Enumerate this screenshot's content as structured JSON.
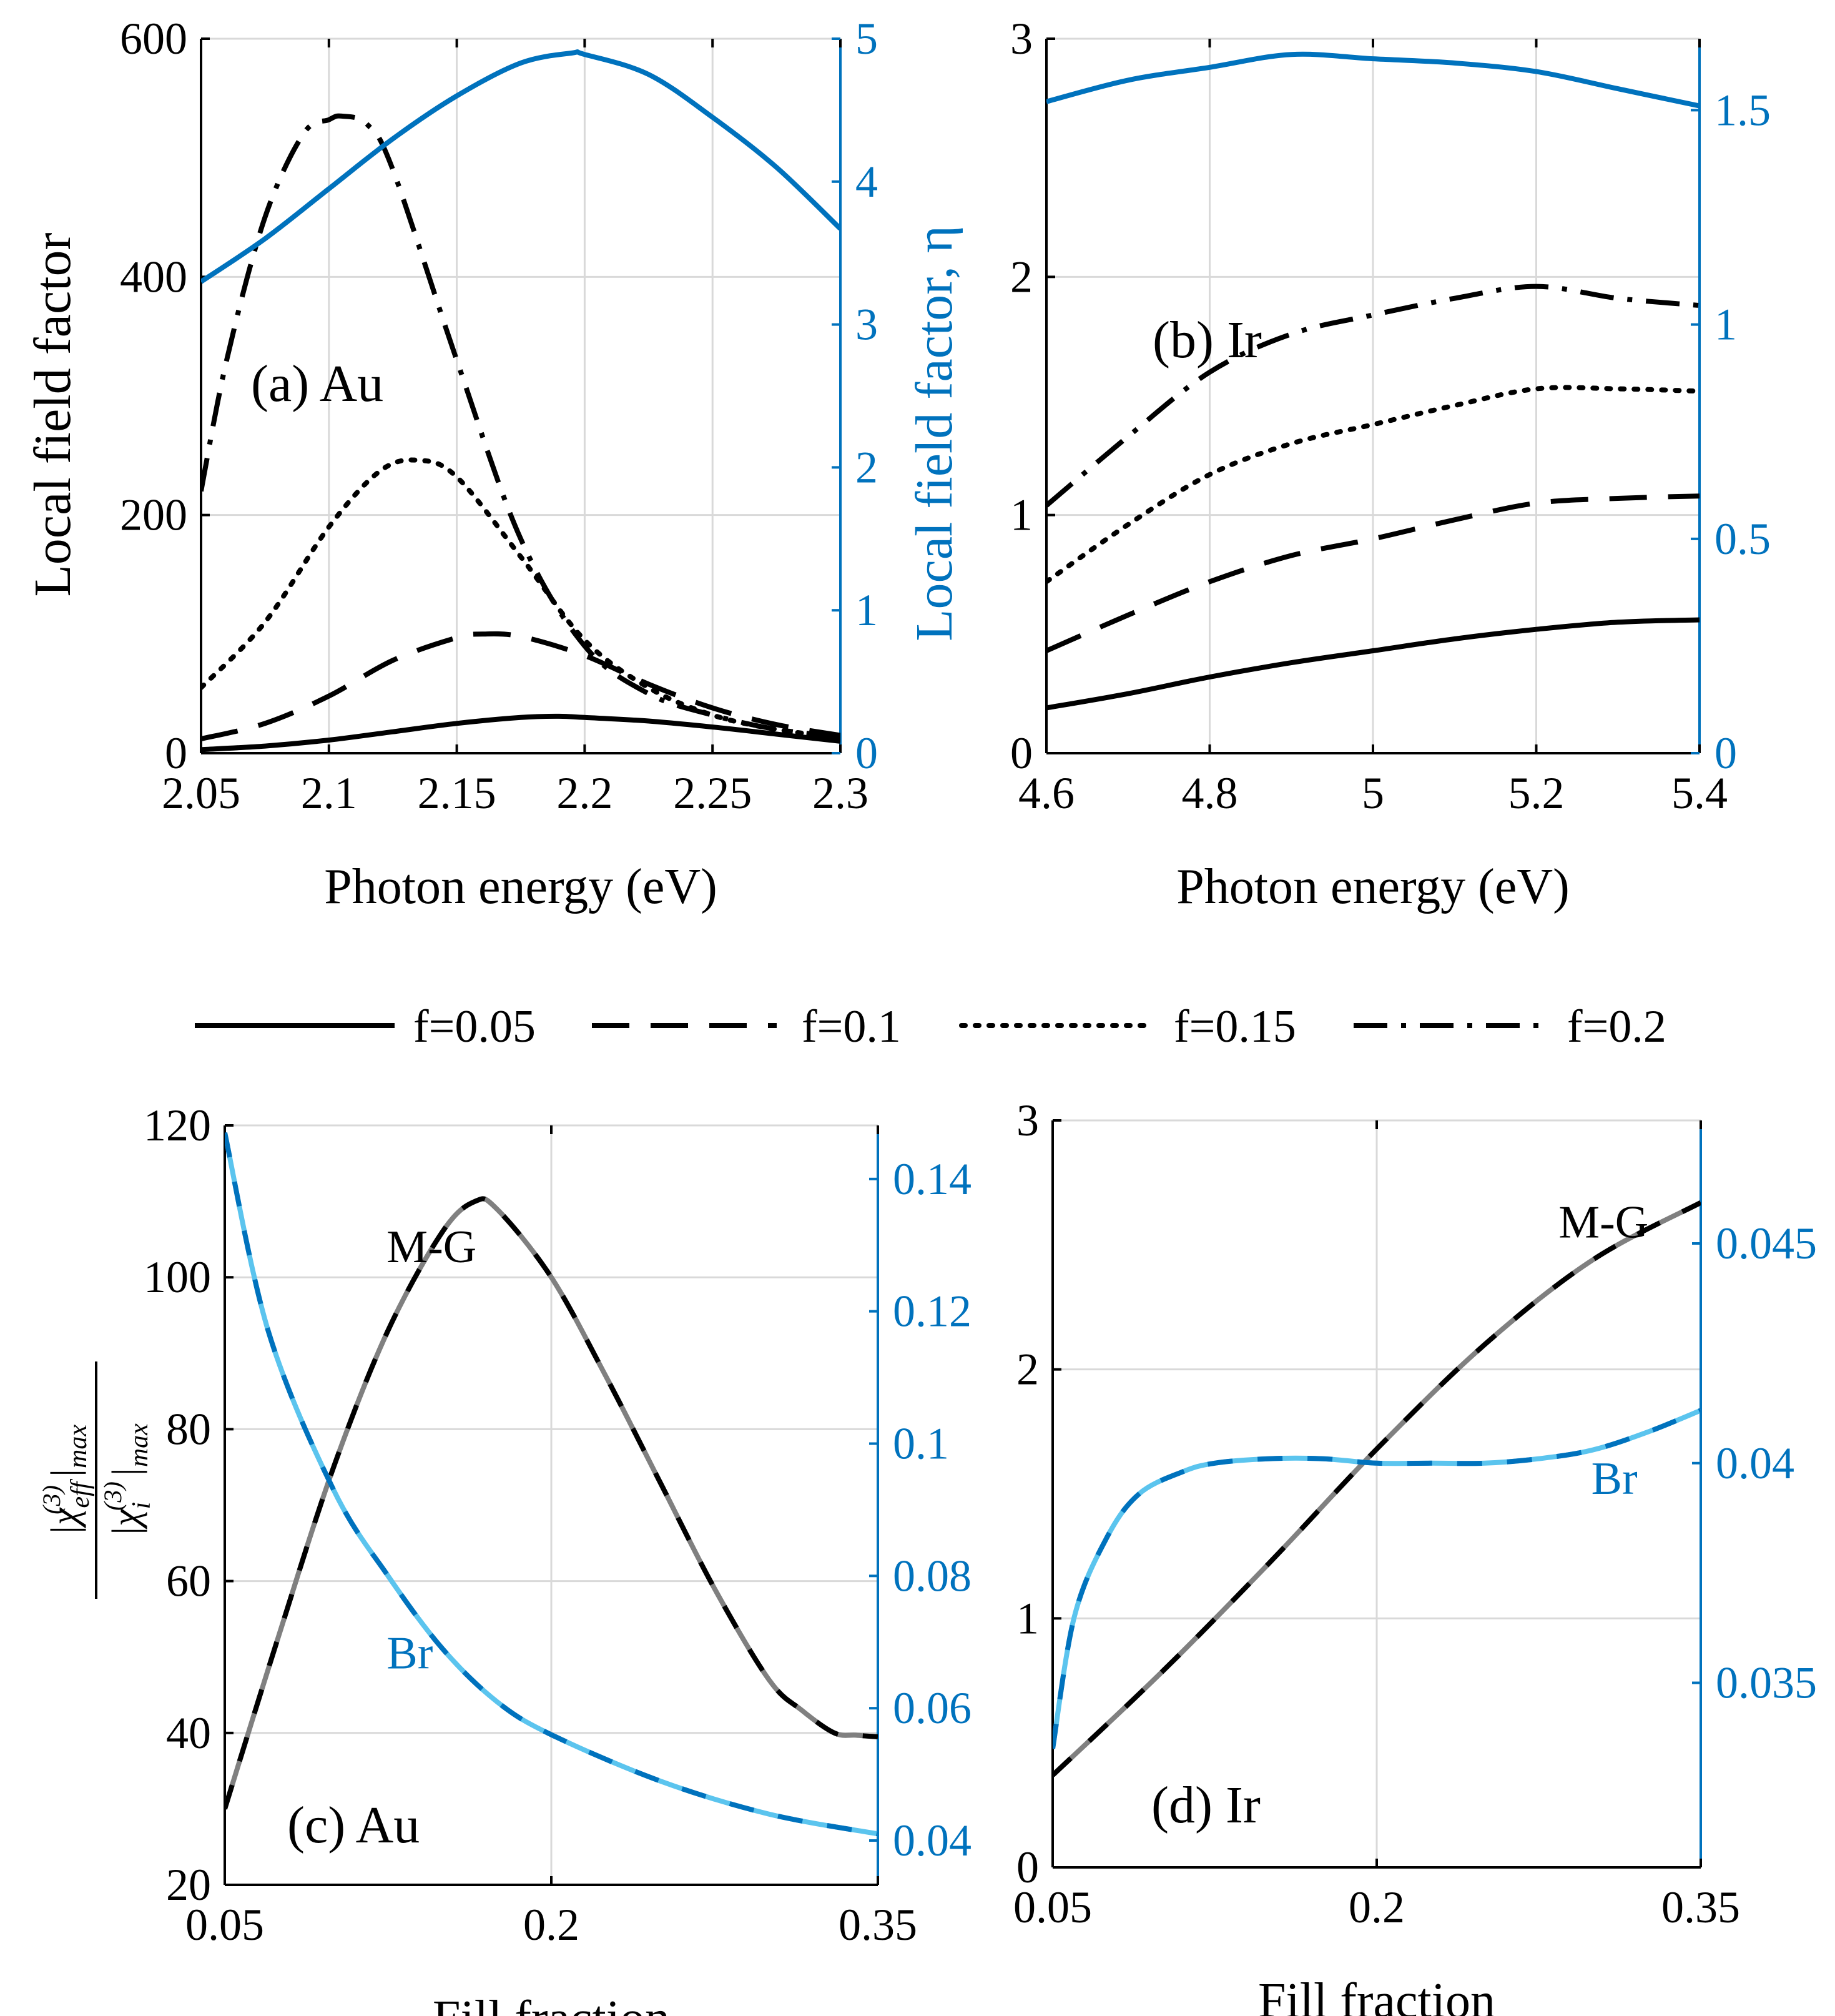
{
  "colors": {
    "black": "#000000",
    "blue": "#0072BD",
    "light_blue": "#5BC4EE",
    "gray": "#808080",
    "grid": "#D9D9D9"
  },
  "legend": {
    "placement": "top-center between panels",
    "entries": [
      {
        "label": "f=0.05",
        "dash": "solid"
      },
      {
        "label": "f=0.1",
        "dash": "dashed"
      },
      {
        "label": "f=0.15",
        "dash": "dotted"
      },
      {
        "label": "f=0.2",
        "dash": "dashdot"
      }
    ]
  },
  "chart_data": [
    {
      "id": "a",
      "type": "line",
      "panel_label": "(a) Au",
      "xlabel": "Photon energy (eV)",
      "ylabel": "Local field factor",
      "ylabel_right": "Local field factor, η",
      "xlim": [
        2.05,
        2.3
      ],
      "ylim": [
        0,
        600
      ],
      "ylim_right": [
        0,
        5
      ],
      "xticks": [
        "2.05",
        "2.1",
        "2.15",
        "2.2",
        "2.25",
        "2.3"
      ],
      "xtick_values": [
        2.05,
        2.1,
        2.15,
        2.2,
        2.25,
        2.3
      ],
      "yticks": [
        "0",
        "200",
        "400",
        "600"
      ],
      "ytick_values": [
        0,
        200,
        400,
        600
      ],
      "yticks_right": [
        "0",
        "1",
        "2",
        "3",
        "4",
        "5"
      ],
      "ytick_values_right": [
        0,
        1,
        2,
        3,
        4,
        5
      ],
      "grid": true,
      "series": [
        {
          "name": "f=0.05",
          "axis": "left",
          "style": "solid",
          "color": "#000000",
          "x": [
            2.05,
            2.075,
            2.1,
            2.125,
            2.15,
            2.175,
            2.19,
            2.2,
            2.225,
            2.25,
            2.275,
            2.3
          ],
          "y": [
            3,
            6,
            11,
            18,
            25,
            30,
            31,
            30,
            27,
            22,
            16,
            10
          ]
        },
        {
          "name": "f=0.1",
          "axis": "left",
          "style": "dashed",
          "color": "#000000",
          "x": [
            2.05,
            2.075,
            2.1,
            2.125,
            2.15,
            2.16,
            2.175,
            2.2,
            2.225,
            2.25,
            2.275,
            2.3
          ],
          "y": [
            12,
            25,
            48,
            78,
            97,
            100,
            98,
            82,
            58,
            38,
            24,
            15
          ]
        },
        {
          "name": "f=0.15",
          "axis": "left",
          "style": "dotted",
          "color": "#000000",
          "x": [
            2.05,
            2.075,
            2.1,
            2.12,
            2.135,
            2.15,
            2.175,
            2.2,
            2.225,
            2.25,
            2.275,
            2.3
          ],
          "y": [
            55,
            110,
            190,
            237,
            246,
            232,
            165,
            95,
            55,
            32,
            20,
            13
          ]
        },
        {
          "name": "f=0.2",
          "axis": "left",
          "style": "dashdot",
          "color": "#000000",
          "x": [
            2.05,
            2.06,
            2.075,
            2.09,
            2.1,
            2.105,
            2.115,
            2.125,
            2.15,
            2.175,
            2.2,
            2.225,
            2.25,
            2.275,
            2.3
          ],
          "y": [
            220,
            330,
            450,
            520,
            532,
            535,
            528,
            490,
            330,
            180,
            90,
            50,
            32,
            20,
            14
          ]
        },
        {
          "name": "η",
          "axis": "right",
          "style": "solid",
          "color": "#0072BD",
          "x": [
            2.05,
            2.075,
            2.1,
            2.125,
            2.15,
            2.175,
            2.195,
            2.2,
            2.225,
            2.25,
            2.275,
            2.3
          ],
          "y": [
            3.3,
            3.6,
            3.95,
            4.3,
            4.6,
            4.83,
            4.9,
            4.89,
            4.75,
            4.45,
            4.1,
            3.67
          ]
        }
      ]
    },
    {
      "id": "b",
      "type": "line",
      "panel_label": "(b) Ir",
      "xlabel": "Photon energy (eV)",
      "ylabel": "",
      "xlim": [
        4.6,
        5.4
      ],
      "ylim": [
        0,
        3
      ],
      "ylim_right": [
        0,
        1.6667
      ],
      "xticks": [
        "4.6",
        "4.8",
        "5",
        "5.2",
        "5.4"
      ],
      "xtick_values": [
        4.6,
        4.8,
        5.0,
        5.2,
        5.4
      ],
      "yticks": [
        "0",
        "1",
        "2",
        "3"
      ],
      "ytick_values": [
        0,
        1,
        2,
        3
      ],
      "yticks_right": [
        "0",
        "0.5",
        "1",
        "1.5"
      ],
      "ytick_values_right": [
        0,
        0.5,
        1,
        1.5
      ],
      "grid": true,
      "series": [
        {
          "name": "f=0.05",
          "axis": "left",
          "style": "solid",
          "color": "#000000",
          "x": [
            4.6,
            4.7,
            4.8,
            4.9,
            5.0,
            5.1,
            5.2,
            5.3,
            5.4
          ],
          "y": [
            0.19,
            0.25,
            0.32,
            0.38,
            0.43,
            0.48,
            0.52,
            0.55,
            0.56
          ]
        },
        {
          "name": "f=0.1",
          "axis": "left",
          "style": "dashed",
          "color": "#000000",
          "x": [
            4.6,
            4.7,
            4.8,
            4.9,
            5.0,
            5.1,
            5.2,
            5.3,
            5.4
          ],
          "y": [
            0.43,
            0.58,
            0.72,
            0.83,
            0.9,
            0.98,
            1.05,
            1.07,
            1.08
          ]
        },
        {
          "name": "f=0.15",
          "axis": "left",
          "style": "dotted",
          "color": "#000000",
          "x": [
            4.6,
            4.7,
            4.8,
            4.9,
            5.0,
            5.1,
            5.2,
            5.3,
            5.4
          ],
          "y": [
            0.72,
            0.96,
            1.17,
            1.3,
            1.38,
            1.46,
            1.53,
            1.53,
            1.52
          ]
        },
        {
          "name": "f=0.2",
          "axis": "left",
          "style": "dashdot",
          "color": "#000000",
          "x": [
            4.6,
            4.7,
            4.8,
            4.9,
            5.0,
            5.1,
            5.2,
            5.3,
            5.4
          ],
          "y": [
            1.04,
            1.33,
            1.6,
            1.76,
            1.84,
            1.91,
            1.96,
            1.91,
            1.88
          ]
        },
        {
          "name": "η",
          "axis": "right",
          "style": "solid",
          "color": "#0072BD",
          "x": [
            4.6,
            4.7,
            4.8,
            4.9,
            5.0,
            5.1,
            5.2,
            5.3,
            5.4
          ],
          "y": [
            1.52,
            1.57,
            1.6,
            1.63,
            1.62,
            1.61,
            1.59,
            1.55,
            1.51
          ]
        }
      ]
    },
    {
      "id": "c",
      "type": "line",
      "panel_label": "(c) Au",
      "xlabel": "Fill fraction",
      "ylabel": "|χ_eff^(3)|_max / |χ_i^(3)|_max",
      "ylabel_num": "|χ",
      "ylabel_den": "|χ",
      "xlim": [
        0.05,
        0.35
      ],
      "ylim": [
        20,
        120
      ],
      "ylim_right": [
        0.0333,
        0.1481
      ],
      "xticks": [
        "0.05",
        "0.2",
        "0.35"
      ],
      "xtick_values": [
        0.05,
        0.2,
        0.35
      ],
      "yticks": [
        "20",
        "40",
        "60",
        "80",
        "100",
        "120"
      ],
      "ytick_values": [
        20,
        40,
        60,
        80,
        100,
        120
      ],
      "yticks_right": [
        "0.04",
        "0.06",
        "0.08",
        "0.1",
        "0.12",
        "0.14"
      ],
      "ytick_values_right": [
        0.04,
        0.06,
        0.08,
        0.1,
        0.12,
        0.14
      ],
      "grid": true,
      "annotations": [
        {
          "text": "M-G",
          "x": 0.145,
          "y": 102,
          "color": "#000000"
        },
        {
          "text": "Br",
          "x": 0.135,
          "y": 0.066,
          "axis": "right",
          "color": "#0072BD"
        }
      ],
      "series": [
        {
          "name": "M-G",
          "axis": "left",
          "style": "gray-black-dashed",
          "color": "#808080",
          "x": [
            0.05,
            0.075,
            0.1,
            0.125,
            0.15,
            0.165,
            0.175,
            0.2,
            0.225,
            0.25,
            0.275,
            0.3,
            0.315,
            0.33,
            0.34,
            0.35
          ],
          "y": [
            30,
            53,
            75,
            93,
            106,
            110,
            109,
            100,
            87,
            73,
            59,
            47,
            43,
            40,
            39.7,
            39.5
          ]
        },
        {
          "name": "Br",
          "axis": "right",
          "style": "lightblue-blue-dashed",
          "color": "#5BC4EE",
          "x": [
            0.05,
            0.07,
            0.1,
            0.125,
            0.15,
            0.175,
            0.2,
            0.25,
            0.3,
            0.35
          ],
          "y": [
            0.147,
            0.117,
            0.093,
            0.08,
            0.069,
            0.061,
            0.056,
            0.049,
            0.044,
            0.041
          ]
        }
      ]
    },
    {
      "id": "d",
      "type": "line",
      "panel_label": "(d) Ir",
      "xlabel": "Fill fraction",
      "ylabel": "",
      "xlim": [
        0.05,
        0.35
      ],
      "ylim": [
        0,
        3
      ],
      "ylim_right": [
        0.0308,
        0.0478
      ],
      "xticks": [
        "0.05",
        "0.2",
        "0.35"
      ],
      "xtick_values": [
        0.05,
        0.2,
        0.35
      ],
      "yticks": [
        "0",
        "1",
        "2",
        "3"
      ],
      "ytick_values": [
        0,
        1,
        2,
        3
      ],
      "yticks_right": [
        "0.035",
        "0.04",
        "0.045"
      ],
      "ytick_values_right": [
        0.035,
        0.04,
        0.045
      ],
      "grid": true,
      "annotations": [
        {
          "text": "M-G",
          "x": 0.305,
          "y": 2.53,
          "color": "#000000"
        },
        {
          "text": "Br",
          "x": 0.31,
          "y": 0.0393,
          "axis": "right",
          "color": "#0072BD"
        }
      ],
      "series": [
        {
          "name": "M-G",
          "axis": "left",
          "style": "gray-black-dashed",
          "color": "#808080",
          "x": [
            0.05,
            0.1,
            0.15,
            0.2,
            0.25,
            0.3,
            0.35
          ],
          "y": [
            0.37,
            0.78,
            1.22,
            1.68,
            2.1,
            2.44,
            2.67
          ]
        },
        {
          "name": "Br",
          "axis": "right",
          "style": "lightblue-blue-dashed",
          "color": "#5BC4EE",
          "x": [
            0.05,
            0.06,
            0.075,
            0.09,
            0.11,
            0.125,
            0.15,
            0.175,
            0.2,
            0.225,
            0.25,
            0.275,
            0.3,
            0.325,
            0.35
          ],
          "y": [
            0.0335,
            0.0365,
            0.0383,
            0.0393,
            0.0398,
            0.04,
            0.0401,
            0.0401,
            0.04,
            0.04,
            0.04,
            0.0401,
            0.0403,
            0.0407,
            0.0412
          ]
        }
      ]
    }
  ]
}
